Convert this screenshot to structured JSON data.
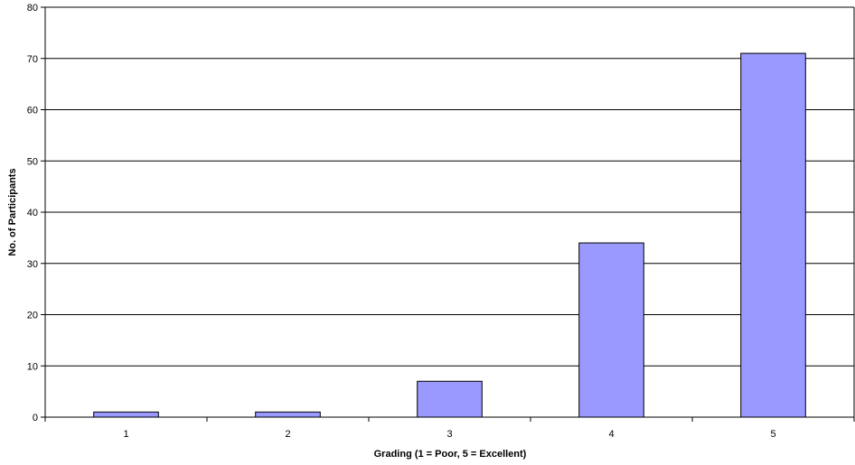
{
  "chart_data": {
    "type": "bar",
    "title": "",
    "xlabel": "Grading (1 = Poor, 5 = Excellent)",
    "ylabel": "No. of Participants",
    "categories": [
      "1",
      "2",
      "3",
      "4",
      "5"
    ],
    "values": [
      1,
      1,
      7,
      34,
      71
    ],
    "ylim": [
      0,
      80
    ],
    "yticks": [
      "0",
      "10",
      "20",
      "30",
      "40",
      "50",
      "60",
      "70",
      "80"
    ],
    "grid": true,
    "legend": "none",
    "bar_color": "#9999ff",
    "bar_border": "#000000"
  }
}
